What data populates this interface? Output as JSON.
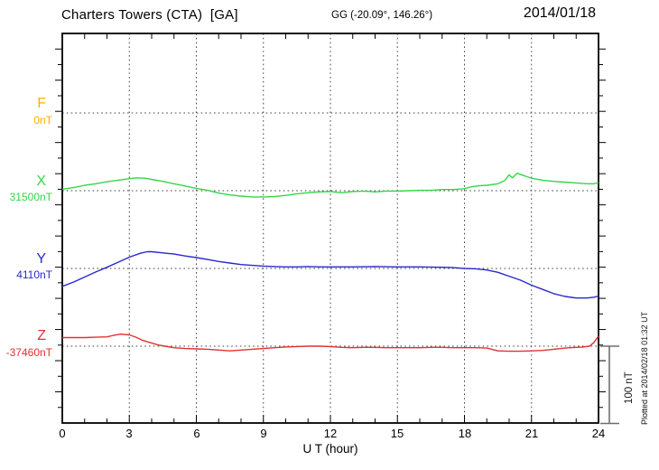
{
  "header": {
    "station_title": "Charters Towers (CTA)  [GA]",
    "coordinates": "GG (-20.09°, 146.26°)",
    "date": "2014/01/18"
  },
  "footer": {
    "xaxis_label": "U T (hour)",
    "plotted_at": "Plotted at 2014/02/18 01:32 UT"
  },
  "scale_bar": {
    "label": "100 nT",
    "nT": 100
  },
  "chart_data": {
    "type": "line",
    "title": "Charters Towers (CTA) [GA] magnetogram 2014/01/18",
    "xlabel": "U T (hour)",
    "x_range_hours": [
      0,
      24
    ],
    "x_ticks": [
      "0",
      "3",
      "6",
      "9",
      "12",
      "15",
      "18",
      "21",
      "24"
    ],
    "x_minor_tick_hours": 1,
    "grid": "dotted vertical at 3h and dotted horizontal baselines",
    "y_scale": "100 nT reference bar; side ticks every 20 nT",
    "channels": [
      {
        "id": "F",
        "label": "F",
        "baseline_label": "0nT",
        "baseline_nT": 0,
        "color": "#FFAF00",
        "points": []
      },
      {
        "id": "X",
        "label": "X",
        "baseline_label": "31500nT",
        "baseline_nT": 31500,
        "color": "#35D648",
        "points": [
          [
            0,
            2
          ],
          [
            0.5,
            4
          ],
          [
            1,
            7
          ],
          [
            1.5,
            9
          ],
          [
            2,
            11.5
          ],
          [
            2.5,
            13.5
          ],
          [
            3,
            15.5
          ],
          [
            3.3,
            16.5
          ],
          [
            3.7,
            16
          ],
          [
            4,
            14.5
          ],
          [
            4.5,
            12
          ],
          [
            5,
            9
          ],
          [
            5.5,
            6
          ],
          [
            6,
            3
          ],
          [
            6.5,
            0.5
          ],
          [
            7,
            -3
          ],
          [
            7.5,
            -5.5
          ],
          [
            8,
            -7
          ],
          [
            8.5,
            -8
          ],
          [
            9,
            -8
          ],
          [
            9.5,
            -7.5
          ],
          [
            10,
            -6
          ],
          [
            10.5,
            -4
          ],
          [
            11,
            -2.5
          ],
          [
            11.5,
            -1.5
          ],
          [
            12,
            -1
          ],
          [
            12.5,
            -2.5
          ],
          [
            13,
            -1
          ],
          [
            13.5,
            -0.5
          ],
          [
            14,
            -1.5
          ],
          [
            14.5,
            -0.5
          ],
          [
            15,
            -0.5
          ],
          [
            15.5,
            0
          ],
          [
            16,
            0.5
          ],
          [
            16.5,
            0.5
          ],
          [
            17,
            1.5
          ],
          [
            17.5,
            1.5
          ],
          [
            18,
            2.5
          ],
          [
            18.3,
            5
          ],
          [
            18.7,
            6.5
          ],
          [
            19,
            7
          ],
          [
            19.5,
            9
          ],
          [
            19.8,
            13
          ],
          [
            20,
            20.5
          ],
          [
            20.15,
            16.5
          ],
          [
            20.35,
            22.5
          ],
          [
            20.6,
            20
          ],
          [
            20.8,
            18
          ],
          [
            21,
            16
          ],
          [
            21.5,
            13.5
          ],
          [
            22,
            12
          ],
          [
            22.5,
            11
          ],
          [
            23,
            10
          ],
          [
            23.5,
            9
          ],
          [
            23.8,
            9
          ],
          [
            24,
            10.5
          ]
        ]
      },
      {
        "id": "Y",
        "label": "Y",
        "baseline_label": "4110nT",
        "baseline_nT": 4110,
        "color": "#2929CC",
        "points": [
          [
            0,
            -23
          ],
          [
            0.5,
            -17.5
          ],
          [
            1,
            -11
          ],
          [
            1.5,
            -4.5
          ],
          [
            2,
            1.5
          ],
          [
            2.5,
            8
          ],
          [
            3,
            14.5
          ],
          [
            3.5,
            19.5
          ],
          [
            3.8,
            21.5
          ],
          [
            4,
            21.5
          ],
          [
            4.5,
            20
          ],
          [
            5,
            18.5
          ],
          [
            5.5,
            16
          ],
          [
            6,
            14
          ],
          [
            6.5,
            11.5
          ],
          [
            7,
            9
          ],
          [
            7.5,
            7
          ],
          [
            8,
            5
          ],
          [
            8.5,
            4
          ],
          [
            9,
            3
          ],
          [
            9.5,
            2.5
          ],
          [
            10,
            2
          ],
          [
            10.5,
            2
          ],
          [
            11,
            2.5
          ],
          [
            11.5,
            2
          ],
          [
            12,
            2
          ],
          [
            13,
            2
          ],
          [
            14,
            2.5
          ],
          [
            15,
            2
          ],
          [
            16,
            2
          ],
          [
            17,
            1.5
          ],
          [
            17.5,
            1
          ],
          [
            18,
            0
          ],
          [
            18.5,
            -0.5
          ],
          [
            19,
            -2
          ],
          [
            19.5,
            -5
          ],
          [
            20,
            -10
          ],
          [
            20.5,
            -15
          ],
          [
            21,
            -21.5
          ],
          [
            21.5,
            -27
          ],
          [
            22,
            -32.5
          ],
          [
            22.5,
            -36
          ],
          [
            23,
            -38
          ],
          [
            23.5,
            -38
          ],
          [
            23.8,
            -37
          ],
          [
            24,
            -35.5
          ]
        ]
      },
      {
        "id": "Z",
        "label": "Z",
        "baseline_label": "-37460nT",
        "baseline_nT": -37460,
        "color": "#E33030",
        "points": [
          [
            0,
            11
          ],
          [
            0.5,
            11
          ],
          [
            1,
            11
          ],
          [
            1.5,
            11.5
          ],
          [
            2,
            12
          ],
          [
            2.3,
            14
          ],
          [
            2.6,
            15.5
          ],
          [
            3,
            14.5
          ],
          [
            3.3,
            11.5
          ],
          [
            3.6,
            7.5
          ],
          [
            4,
            4
          ],
          [
            4.3,
            1.5
          ],
          [
            4.6,
            0
          ],
          [
            5,
            -2
          ],
          [
            5.5,
            -3
          ],
          [
            6,
            -3.5
          ],
          [
            6.5,
            -4
          ],
          [
            7,
            -5
          ],
          [
            7.5,
            -6
          ],
          [
            8,
            -5
          ],
          [
            8.5,
            -4
          ],
          [
            9,
            -3
          ],
          [
            9.5,
            -2
          ],
          [
            10,
            -1
          ],
          [
            10.5,
            -0.5
          ],
          [
            11,
            0
          ],
          [
            11.5,
            0
          ],
          [
            12,
            -0.5
          ],
          [
            12.5,
            -1.5
          ],
          [
            13,
            -2
          ],
          [
            13.5,
            -1.5
          ],
          [
            14,
            -1.5
          ],
          [
            14.5,
            -2
          ],
          [
            15,
            -2
          ],
          [
            15.5,
            -2
          ],
          [
            16,
            -2
          ],
          [
            16.5,
            -1.5
          ],
          [
            17,
            -1.5
          ],
          [
            17.5,
            -2
          ],
          [
            18,
            -2
          ],
          [
            18.5,
            -2
          ],
          [
            19,
            -2.5
          ],
          [
            19.5,
            -6
          ],
          [
            20,
            -6.5
          ],
          [
            20.5,
            -6.5
          ],
          [
            21,
            -6
          ],
          [
            21.5,
            -5.5
          ],
          [
            22,
            -4
          ],
          [
            22.5,
            -2.5
          ],
          [
            23,
            -1.5
          ],
          [
            23.3,
            -1
          ],
          [
            23.6,
            0
          ],
          [
            23.8,
            5
          ],
          [
            24,
            13
          ]
        ]
      }
    ]
  }
}
